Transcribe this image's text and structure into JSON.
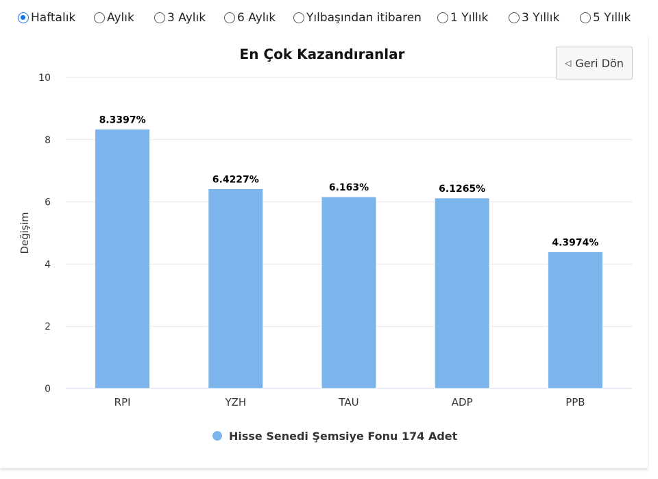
{
  "periods": [
    {
      "label": "Haftalık",
      "checked": true
    },
    {
      "label": "Aylık",
      "checked": false
    },
    {
      "label": "3 Aylık",
      "checked": false
    },
    {
      "label": "6 Aylık",
      "checked": false
    },
    {
      "label": "Yılbaşından itibaren",
      "checked": false
    },
    {
      "label": "1 Yıllık",
      "checked": false
    },
    {
      "label": "3 Yıllık",
      "checked": false
    },
    {
      "label": "5 Yıllık",
      "checked": false
    }
  ],
  "back_button": {
    "icon": "back-triangle-icon",
    "label": "Geri Dön"
  },
  "colors": {
    "bar": "#7cb5ec",
    "accent": "#1a73e8"
  },
  "chart_data": {
    "type": "bar",
    "title": "En Çok Kazandıranlar",
    "xlabel": "",
    "ylabel": "Değişim",
    "ylim": [
      0,
      10
    ],
    "yticks": [
      0,
      2,
      4,
      6,
      8,
      10
    ],
    "grid": true,
    "legend_position": "bottom",
    "categories": [
      "RPI",
      "YZH",
      "TAU",
      "ADP",
      "PPB"
    ],
    "series": [
      {
        "name": "Hisse Senedi Şemsiye Fonu 174 Adet",
        "values": [
          8.3397,
          6.4227,
          6.163,
          6.1265,
          4.3974
        ],
        "data_labels": [
          "8.3397%",
          "6.4227%",
          "6.163%",
          "6.1265%",
          "4.3974%"
        ]
      }
    ]
  }
}
